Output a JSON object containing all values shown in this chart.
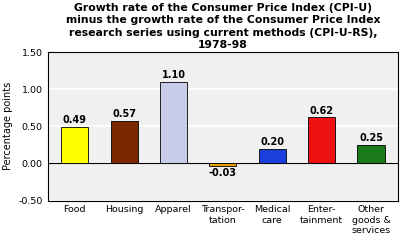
{
  "title": "Growth rate of the Consumer Price Index (CPI-U)\nminus the growth rate of the Consumer Price Index\nresearch series using current methods (CPI-U-RS),\n1978-98",
  "ylabel": "Percentage points",
  "categories": [
    "Food",
    "Housing",
    "Apparel",
    "Transpor-\ntation",
    "Medical\ncare",
    "Enter-\ntainment",
    "Other\ngoods &\nservices"
  ],
  "values": [
    0.49,
    0.57,
    1.1,
    -0.03,
    0.2,
    0.62,
    0.25
  ],
  "bar_colors": [
    "#ffff00",
    "#7B2800",
    "#c8cce8",
    "#e8a000",
    "#1a3fdd",
    "#ee1111",
    "#1a7a1a"
  ],
  "ylim": [
    -0.5,
    1.5
  ],
  "yticks": [
    -0.5,
    0.0,
    0.5,
    1.0,
    1.5
  ],
  "ytick_labels": [
    "-0.50",
    "0.00",
    "0.50",
    "1.00",
    "1.50"
  ],
  "bar_width": 0.55,
  "title_fontsize": 7.8,
  "label_fontsize": 6.8,
  "value_fontsize": 7.0,
  "ylabel_fontsize": 7.0,
  "background_color": "#ffffff",
  "plot_bg_color": "#f0f0f0",
  "grid_color": "#ffffff",
  "grid_linewidth": 1.2
}
